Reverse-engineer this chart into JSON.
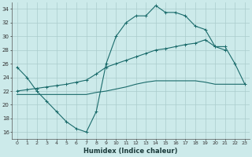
{
  "xlabel": "Humidex (Indice chaleur)",
  "bg_color": "#cceaea",
  "grid_color": "#aacccc",
  "line_color": "#1a6b6b",
  "xlim": [
    -0.5,
    23.5
  ],
  "ylim": [
    15,
    35
  ],
  "yticks": [
    16,
    18,
    20,
    22,
    24,
    26,
    28,
    30,
    32,
    34
  ],
  "xticks": [
    0,
    1,
    2,
    3,
    4,
    5,
    6,
    7,
    8,
    9,
    10,
    11,
    12,
    13,
    14,
    15,
    16,
    17,
    18,
    19,
    20,
    21,
    22,
    23
  ],
  "curve1_x": [
    0,
    1,
    2,
    3,
    4,
    5,
    6,
    7,
    8,
    9,
    10,
    11,
    12,
    13,
    14,
    15,
    16,
    17,
    18,
    19,
    20,
    21
  ],
  "curve1_y": [
    25.5,
    24.0,
    22.0,
    20.5,
    19.0,
    17.5,
    16.5,
    16.0,
    19.0,
    26.0,
    30.0,
    32.0,
    33.0,
    33.0,
    34.5,
    33.5,
    33.5,
    33.0,
    31.5,
    31.0,
    28.5,
    28.0
  ],
  "curve2_x": [
    0,
    1,
    2,
    3,
    4,
    5,
    6,
    7,
    8,
    9,
    10,
    11,
    12,
    13,
    14,
    15,
    16,
    17,
    18,
    19,
    20,
    21,
    22,
    23
  ],
  "curve2_y": [
    22.0,
    22.2,
    22.4,
    22.6,
    22.8,
    23.0,
    23.3,
    23.6,
    24.5,
    25.5,
    26.0,
    26.5,
    27.0,
    27.5,
    28.0,
    28.2,
    28.5,
    28.8,
    29.0,
    29.5,
    28.5,
    28.5,
    26.0,
    23.0
  ],
  "curve3_x": [
    0,
    1,
    2,
    3,
    4,
    5,
    6,
    7,
    8,
    9,
    10,
    11,
    12,
    13,
    14,
    15,
    16,
    17,
    18,
    19,
    20,
    21,
    22,
    23
  ],
  "curve3_y": [
    21.5,
    21.5,
    21.5,
    21.5,
    21.5,
    21.5,
    21.5,
    21.5,
    21.8,
    22.0,
    22.3,
    22.6,
    23.0,
    23.3,
    23.5,
    23.5,
    23.5,
    23.5,
    23.5,
    23.3,
    23.0,
    23.0,
    23.0,
    23.0
  ]
}
